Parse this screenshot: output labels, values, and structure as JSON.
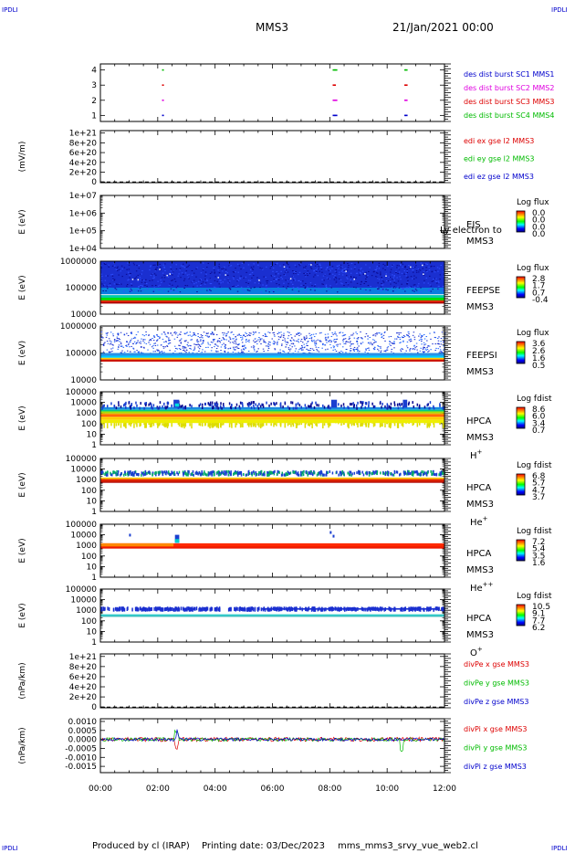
{
  "header": {
    "corner_tag": "IPDLI",
    "spacecraft": "MMS3",
    "date_time": "21/Jan/2021 00:00"
  },
  "footer": {
    "produced_by": "Produced by cl (IRAP)",
    "printing_date": "Printing date: 03/Dec/2023",
    "file_name": "mms_mms3_srvy_vue_web2.cl"
  },
  "colors": {
    "blue": "#0000cc",
    "magenta": "#e000e0",
    "red": "#dd0000",
    "green": "#00bb00",
    "bg_spectro": "#1a1aa8"
  },
  "chart_data": {
    "type": "heatmap",
    "x": {
      "range_hours": [
        0,
        12
      ],
      "tick_hours": [
        0,
        2,
        4,
        6,
        8,
        10,
        12
      ],
      "tick_labels": [
        "00:00",
        "02:00",
        "04:00",
        "06:00",
        "08:00",
        "10:00",
        "12:00"
      ]
    },
    "panels": [
      {
        "id": "burst",
        "tick_labels": [
          "4",
          "3",
          "2",
          "1"
        ],
        "tick_values": [
          4,
          3,
          2,
          1
        ],
        "ylim": [
          0.6,
          4.4
        ],
        "legend": [
          {
            "text": "des dist burst SC1 MMS1",
            "color": "#0000cc"
          },
          {
            "text": "des dist burst SC2 MMS2",
            "color": "#e000e0"
          },
          {
            "text": "des dist burst SC3 MMS3",
            "color": "#dd0000"
          },
          {
            "text": "des dist burst SC4 MMS4",
            "color": "#00bb00"
          }
        ],
        "marks": [
          {
            "level": 4,
            "color": "#00bb00",
            "hours": [
              2.15,
              8.1,
              8.15,
              8.2,
              10.6,
              10.65
            ]
          },
          {
            "level": 3,
            "color": "#dd0000",
            "hours": [
              2.15,
              8.1,
              8.15,
              10.6,
              10.65
            ]
          },
          {
            "level": 2,
            "color": "#e000e0",
            "hours": [
              2.15,
              8.1,
              8.15,
              8.2,
              10.6,
              10.65
            ]
          },
          {
            "level": 1,
            "color": "#0000cc",
            "hours": [
              2.15,
              8.1,
              8.15,
              8.2,
              10.6,
              10.65
            ]
          }
        ]
      },
      {
        "id": "edi",
        "ylabel": "(mV/m)",
        "tick_labels": [
          "1e+21",
          "8e+20",
          "6e+20",
          "4e+20",
          "2e+20",
          "0"
        ],
        "tick_values": [
          1e+21,
          8e+20,
          6e+20,
          4e+20,
          2e+20,
          0
        ],
        "ylim": [
          -1.5e+19,
          1.05e+21
        ],
        "zero_dashed": true,
        "legend": [
          {
            "text": "edi ex gse l2 MMS3",
            "color": "#dd0000"
          },
          {
            "text": "edi ey gse l2 MMS3",
            "color": "#00bb00"
          },
          {
            "text": "edi ez gse l2 MMS3",
            "color": "#0000cc"
          }
        ]
      },
      {
        "id": "eis",
        "ylabel": "E (eV)",
        "tick_labels": [
          "1e+07",
          "1e+06",
          "1e+05",
          "1e+04"
        ],
        "log_decades": [
          7,
          6,
          5,
          4
        ],
        "instrument": "EIS",
        "species": "MMS3",
        "overlay_text": "Ly electron to",
        "colorbar": {
          "title": "Log flux",
          "labels": [
            "0.0",
            "0.0",
            "0.0",
            "0.0"
          ]
        }
      },
      {
        "id": "feeps_e",
        "ylabel": "E (eV)",
        "tick_labels": [
          "1000000",
          "100000",
          "10000"
        ],
        "log_decades": [
          6,
          5,
          4
        ],
        "instrument": "FEEPSE",
        "species": "MMS3",
        "colorbar": {
          "title": "Log flux",
          "labels": [
            "2.8",
            "1.7",
            "0.7",
            "-0.4"
          ]
        }
      },
      {
        "id": "feeps_i",
        "ylabel": "E (eV)",
        "tick_labels": [
          "1000000",
          "100000",
          "10000"
        ],
        "log_decades": [
          6,
          5,
          4
        ],
        "instrument": "FEEPSI",
        "species": "MMS3",
        "colorbar": {
          "title": "Log flux",
          "labels": [
            "3.6",
            "2.6",
            "1.6",
            "0.5"
          ]
        }
      },
      {
        "id": "hpca_h",
        "ylabel": "E (eV)",
        "tick_labels": [
          "100000",
          "10000",
          "1000",
          "100",
          "10",
          "1"
        ],
        "log_decades": [
          5,
          4,
          3,
          2,
          1,
          0
        ],
        "instrument": "HPCA",
        "species": "MMS3",
        "ion": "H",
        "ion_charge": "+",
        "colorbar": {
          "title": "Log fdist",
          "labels": [
            "8.6",
            "6.0",
            "3.4",
            "0.7"
          ]
        }
      },
      {
        "id": "hpca_he1",
        "ylabel": "E (eV)",
        "tick_labels": [
          "100000",
          "10000",
          "1000",
          "100",
          "10",
          "1"
        ],
        "log_decades": [
          5,
          4,
          3,
          2,
          1,
          0
        ],
        "instrument": "HPCA",
        "species": "MMS3",
        "ion": "He",
        "ion_charge": "+",
        "colorbar": {
          "title": "Log fdist",
          "labels": [
            "6.8",
            "5.7",
            "4.7",
            "3.7"
          ]
        }
      },
      {
        "id": "hpca_he2",
        "ylabel": "E (eV)",
        "tick_labels": [
          "100000",
          "10000",
          "1000",
          "100",
          "10",
          "1"
        ],
        "log_decades": [
          5,
          4,
          3,
          2,
          1,
          0
        ],
        "instrument": "HPCA",
        "species": "MMS3",
        "ion": "He",
        "ion_charge": "++",
        "colorbar": {
          "title": "Log fdist",
          "labels": [
            "7.2",
            "5.4",
            "3.5",
            "1.6"
          ]
        }
      },
      {
        "id": "hpca_o",
        "ylabel": "E (eV)",
        "tick_labels": [
          "100000",
          "10000",
          "1000",
          "100",
          "10",
          "1"
        ],
        "log_decades": [
          5,
          4,
          3,
          2,
          1,
          0
        ],
        "instrument": "HPCA",
        "species": "MMS3",
        "ion": "O",
        "ion_charge": "+",
        "colorbar": {
          "title": "Log fdist",
          "labels": [
            "10.5",
            "9.1",
            "7.7",
            "6.2"
          ]
        }
      },
      {
        "id": "divpe",
        "ylabel": "(nPa/km)",
        "tick_labels": [
          "1e+21",
          "8e+20",
          "6e+20",
          "4e+20",
          "2e+20",
          "0"
        ],
        "tick_values": [
          1e+21,
          8e+20,
          6e+20,
          4e+20,
          2e+20,
          0
        ],
        "ylim": [
          -1.5e+19,
          1.05e+21
        ],
        "zero_dashed": true,
        "legend": [
          {
            "text": "divPe x gse MMS3",
            "color": "#dd0000"
          },
          {
            "text": "divPe y gse MMS3",
            "color": "#00bb00"
          },
          {
            "text": "divPe z gse MMS3",
            "color": "#0000cc"
          }
        ]
      },
      {
        "id": "divpi",
        "ylabel": "(nPa/km)",
        "tick_labels": [
          "0.0010",
          "0.0005",
          "0.0000",
          "-0.0005",
          "-0.0010",
          "-0.0015"
        ],
        "tick_values": [
          0.001,
          0.0005,
          0,
          -0.0005,
          -0.001,
          -0.0015
        ],
        "ylim": [
          -0.00185,
          0.00115
        ],
        "legend": [
          {
            "text": "divPi x gse MMS3",
            "color": "#dd0000"
          },
          {
            "text": "divPi y gse MMS3",
            "color": "#00bb00"
          },
          {
            "text": "divPi z gse MMS3",
            "color": "#0000cc"
          }
        ]
      }
    ]
  }
}
